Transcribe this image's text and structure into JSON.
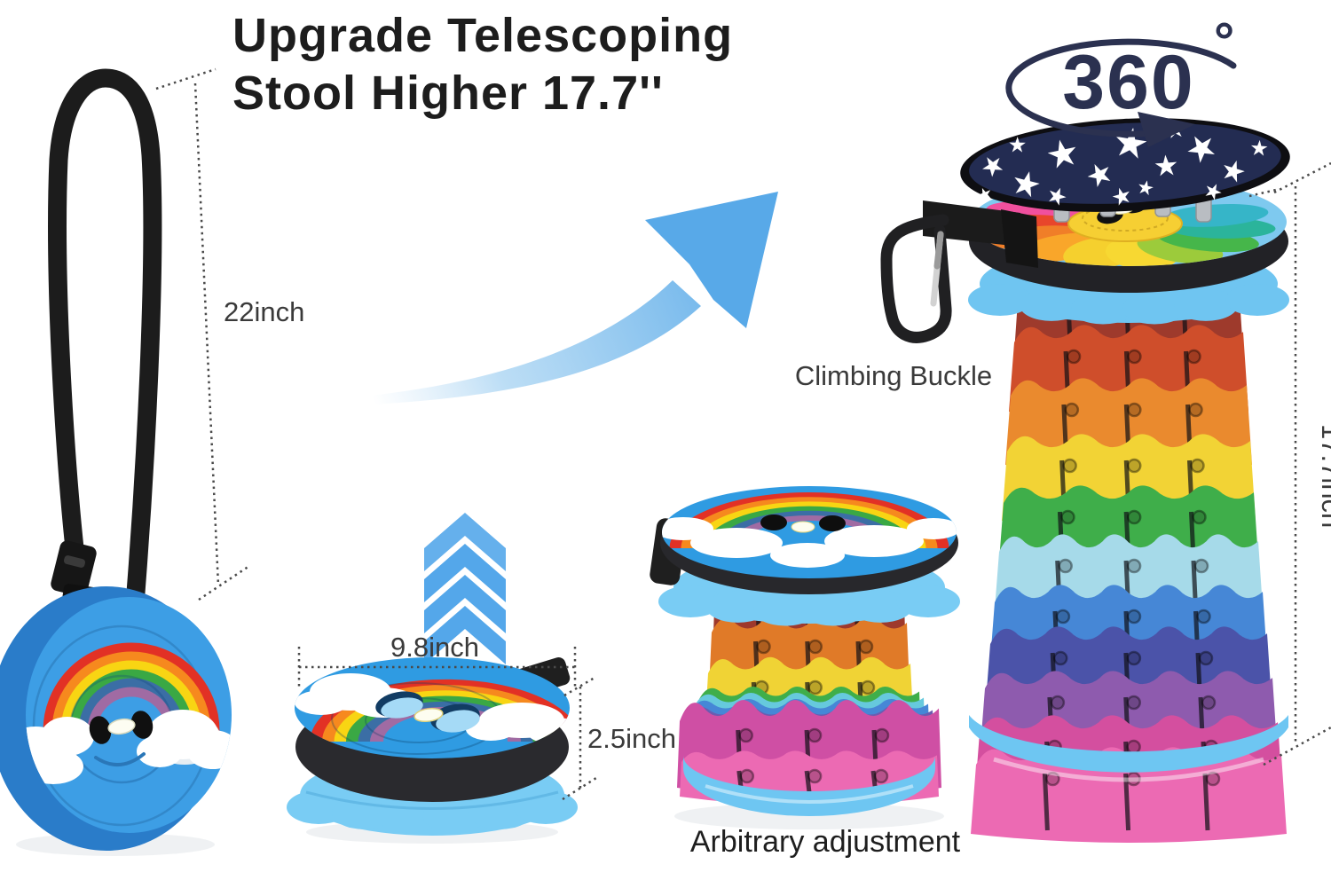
{
  "title": {
    "line1": "Upgrade Telescoping",
    "line2": "Stool Higher 17.7''"
  },
  "annotations": {
    "rotation_value": "360",
    "rotation_unit": "°",
    "strap_length": "22inch",
    "climbing_buckle": "Climbing Buckle",
    "extended_height": "17.7inch",
    "seat_diameter": "9.8inch",
    "folded_height": "2.5inch",
    "adjustment": "Arbitrary adjustment"
  },
  "colors": {
    "background": "#ffffff",
    "text": "#1d1d1d",
    "dimension": "#4a4a4a",
    "navy": "#2b3150",
    "arrow_blue": "#58a9e8",
    "chevron_blue": "#54a7ea",
    "seat_top_blue": "#2f9be2",
    "disc_front_blue": "#3d9ee5",
    "disc_side_blue": "#2a7cc9",
    "band_black": "#28282c",
    "lip_light_blue": "#79ccf4",
    "strap_black": "#1c1c1c",
    "star_pad_navy": "#232c52",
    "star_pad_rim": "#0e0e12",
    "peg_gray": "#b9bdc2",
    "carabiner": "#202022",
    "flower_center": "#f6cf33",
    "rainbow": [
      "#e23125",
      "#f6891e",
      "#f8d513",
      "#3aa844",
      "#3b6ea5",
      "#a06ba3"
    ],
    "tall_layers": [
      "#9e3a2c",
      "#cf4e2b",
      "#ea8a2e",
      "#f2d335",
      "#3fae4a",
      "#a6dae9",
      "#4687d6",
      "#4b53a9",
      "#8e5bae",
      "#d44f9f",
      "#ec6ab3"
    ],
    "tall_base": "#6ec6f2",
    "mid_top_layers": [
      "#9e392c",
      "#e07a28",
      "#f0d335"
    ],
    "mid_ring_layers": [
      "#3fae4a",
      "#66c9dd",
      "#4687d6",
      "#6b5cb0"
    ],
    "mid_magenta": "#cf4fa4",
    "mid_pink": "#ec6ab3",
    "mid_base": "#6ec6f2",
    "petals": [
      "#f0509e",
      "#e8462b",
      "#f07e28",
      "#f9a62a",
      "#f5d02e",
      "#f7d832",
      "#9ccb3b",
      "#46b64a",
      "#2bb49b",
      "#36b5c8"
    ]
  }
}
